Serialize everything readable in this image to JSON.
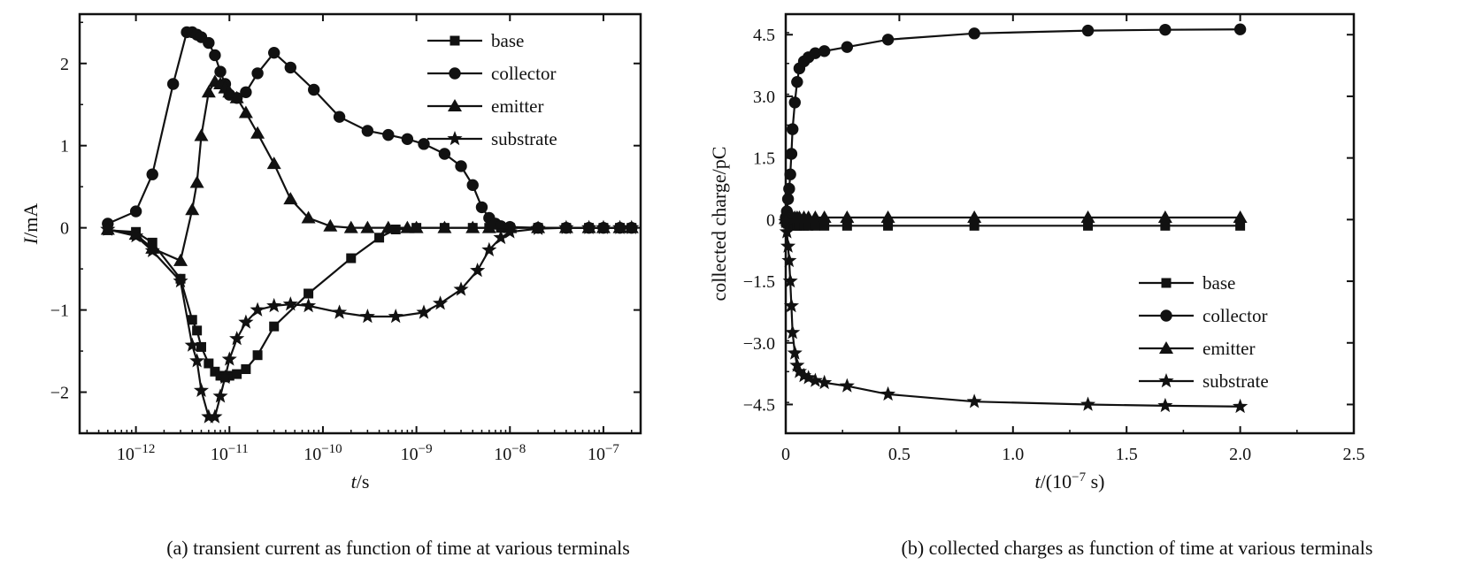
{
  "chart_data": [
    {
      "type": "line",
      "caption": "(a) transient current as function of time at various terminals",
      "xlabel": "t/s",
      "ylabel": "I/mA",
      "x_scale": "log",
      "xlim": [
        2.5e-13,
        2.5e-07
      ],
      "ylim": [
        -2.5,
        2.6
      ],
      "x_ticks": [
        {
          "value": 1e-12,
          "label": "10−12"
        },
        {
          "value": 1e-11,
          "label": "10−11"
        },
        {
          "value": 1e-10,
          "label": "10−10"
        },
        {
          "value": 1e-09,
          "label": "10−9"
        },
        {
          "value": 1e-08,
          "label": "10−8"
        },
        {
          "value": 1e-07,
          "label": "10−7"
        }
      ],
      "y_ticks": [
        {
          "value": 2,
          "label": "2"
        },
        {
          "value": 1,
          "label": "1"
        },
        {
          "value": 0,
          "label": "0"
        },
        {
          "value": -1,
          "label": "−1"
        },
        {
          "value": -2,
          "label": "−2"
        }
      ],
      "legend_position": "top-right",
      "series": [
        {
          "name": "base",
          "marker": "square",
          "x": [
            5e-13,
            1e-12,
            1.5e-12,
            3e-12,
            4e-12,
            4.5e-12,
            5e-12,
            6e-12,
            7e-12,
            8e-12,
            9e-12,
            1e-11,
            1.2e-11,
            1.5e-11,
            2e-11,
            3e-11,
            7e-11,
            2e-10,
            4e-10,
            6e-10,
            1e-09,
            2e-09,
            4e-09,
            6e-09,
            8e-09,
            1e-08,
            2e-08,
            4e-08,
            7e-08,
            1e-07,
            1.5e-07,
            2e-07
          ],
          "y": [
            -0.03,
            -0.05,
            -0.18,
            -0.62,
            -1.12,
            -1.25,
            -1.45,
            -1.65,
            -1.75,
            -1.8,
            -1.82,
            -1.8,
            -1.78,
            -1.72,
            -1.55,
            -1.2,
            -0.8,
            -0.37,
            -0.12,
            -0.02,
            0,
            0,
            0,
            0,
            0,
            0,
            0,
            0,
            0,
            0,
            0,
            0
          ]
        },
        {
          "name": "collector",
          "marker": "circle",
          "x": [
            5e-13,
            1e-12,
            1.5e-12,
            2.5e-12,
            3.5e-12,
            4e-12,
            4.5e-12,
            5e-12,
            6e-12,
            7e-12,
            8e-12,
            9e-12,
            1e-11,
            1.2e-11,
            1.5e-11,
            2e-11,
            3e-11,
            4.5e-11,
            8e-11,
            1.5e-10,
            3e-10,
            5e-10,
            8e-10,
            1.2e-09,
            2e-09,
            3e-09,
            4e-09,
            5e-09,
            6e-09,
            7e-09,
            8e-09,
            1e-08,
            2e-08,
            4e-08,
            7e-08,
            1e-07,
            1.5e-07,
            2e-07
          ],
          "y": [
            0.05,
            0.2,
            0.65,
            1.75,
            2.38,
            2.38,
            2.35,
            2.32,
            2.25,
            2.1,
            1.9,
            1.75,
            1.62,
            1.58,
            1.65,
            1.88,
            2.13,
            1.95,
            1.68,
            1.35,
            1.18,
            1.13,
            1.08,
            1.02,
            0.9,
            0.75,
            0.52,
            0.25,
            0.12,
            0.05,
            0.02,
            0.01,
            0,
            0,
            0,
            0,
            0,
            0
          ]
        },
        {
          "name": "emitter",
          "marker": "triangle",
          "x": [
            5e-13,
            1e-12,
            1.5e-12,
            3e-12,
            4e-12,
            4.5e-12,
            5e-12,
            6e-12,
            7e-12,
            8e-12,
            9e-12,
            1e-11,
            1.2e-11,
            1.5e-11,
            2e-11,
            3e-11,
            4.5e-11,
            7e-11,
            1.2e-10,
            2e-10,
            3e-10,
            5e-10,
            8e-10,
            1e-09,
            2e-09,
            4e-09,
            6e-09,
            1e-08,
            2e-08,
            4e-08,
            7e-08,
            1e-07,
            1.5e-07,
            2e-07
          ],
          "y": [
            -0.02,
            -0.08,
            -0.25,
            -0.4,
            0.22,
            0.55,
            1.12,
            1.65,
            1.78,
            1.75,
            1.7,
            1.65,
            1.58,
            1.4,
            1.15,
            0.78,
            0.35,
            0.12,
            0.02,
            0,
            0,
            0,
            0,
            0,
            0,
            0,
            0,
            0,
            0,
            0,
            0,
            0,
            0,
            0
          ]
        },
        {
          "name": "substrate",
          "marker": "star",
          "x": [
            5e-13,
            1e-12,
            1.5e-12,
            3e-12,
            4e-12,
            4.5e-12,
            5e-12,
            6e-12,
            7e-12,
            8e-12,
            9e-12,
            1e-11,
            1.2e-11,
            1.5e-11,
            2e-11,
            3e-11,
            4.5e-11,
            7e-11,
            1.5e-10,
            3e-10,
            6e-10,
            1.2e-09,
            1.8e-09,
            3e-09,
            4.5e-09,
            6e-09,
            8e-09,
            1e-08,
            2e-08,
            4e-08,
            7e-08,
            1e-07,
            1.5e-07,
            2e-07
          ],
          "y": [
            -0.02,
            -0.1,
            -0.28,
            -0.65,
            -1.43,
            -1.62,
            -1.98,
            -2.3,
            -2.3,
            -2.05,
            -1.82,
            -1.6,
            -1.35,
            -1.15,
            -1.0,
            -0.95,
            -0.93,
            -0.95,
            -1.03,
            -1.08,
            -1.08,
            -1.03,
            -0.92,
            -0.75,
            -0.52,
            -0.27,
            -0.12,
            -0.05,
            -0.01,
            0,
            0,
            0,
            0,
            0
          ]
        }
      ]
    },
    {
      "type": "line",
      "caption": "(b) collected charges as function of time at various terminals",
      "xlabel": "t/(10−7 s)",
      "ylabel": "collected charge/pC",
      "x_scale": "linear",
      "xlim": [
        0,
        2.5
      ],
      "ylim": [
        -5.2,
        5.0
      ],
      "x_ticks": [
        {
          "value": 0,
          "label": "0"
        },
        {
          "value": 0.5,
          "label": "0.5"
        },
        {
          "value": 1.0,
          "label": "1.0"
        },
        {
          "value": 1.5,
          "label": "1.5"
        },
        {
          "value": 2.0,
          "label": "2.0"
        },
        {
          "value": 2.5,
          "label": "2.5"
        }
      ],
      "y_ticks": [
        {
          "value": 4.5,
          "label": "4.5"
        },
        {
          "value": 3.0,
          "label": "3.0"
        },
        {
          "value": 1.5,
          "label": "1.5"
        },
        {
          "value": 0,
          "label": "0"
        },
        {
          "value": -1.5,
          "label": "−1.5"
        },
        {
          "value": -3.0,
          "label": "−3.0"
        },
        {
          "value": -4.5,
          "label": "−4.5"
        }
      ],
      "legend_position": "bottom-right",
      "series": [
        {
          "name": "base",
          "marker": "square",
          "x": [
            0,
            0.005,
            0.01,
            0.015,
            0.02,
            0.025,
            0.03,
            0.04,
            0.05,
            0.06,
            0.08,
            0.1,
            0.13,
            0.17,
            0.27,
            0.45,
            0.83,
            1.33,
            1.67,
            2.0
          ],
          "y": [
            -0.05,
            -0.08,
            -0.1,
            -0.12,
            -0.13,
            -0.14,
            -0.14,
            -0.15,
            -0.15,
            -0.15,
            -0.15,
            -0.15,
            -0.15,
            -0.15,
            -0.15,
            -0.15,
            -0.15,
            -0.15,
            -0.15,
            -0.15
          ]
        },
        {
          "name": "collector",
          "marker": "circle",
          "x": [
            0,
            0.005,
            0.01,
            0.015,
            0.02,
            0.025,
            0.03,
            0.04,
            0.05,
            0.06,
            0.08,
            0.1,
            0.13,
            0.17,
            0.27,
            0.45,
            0.83,
            1.33,
            1.67,
            2.0
          ],
          "y": [
            0.05,
            0.2,
            0.5,
            0.75,
            1.1,
            1.6,
            2.2,
            2.85,
            3.35,
            3.68,
            3.85,
            3.95,
            4.05,
            4.1,
            4.2,
            4.38,
            4.53,
            4.6,
            4.62,
            4.63
          ]
        },
        {
          "name": "emitter",
          "marker": "triangle",
          "x": [
            0,
            0.005,
            0.01,
            0.015,
            0.02,
            0.025,
            0.03,
            0.04,
            0.05,
            0.06,
            0.08,
            0.1,
            0.13,
            0.17,
            0.27,
            0.45,
            0.83,
            1.33,
            1.67,
            2.0
          ],
          "y": [
            0.02,
            0.05,
            0.06,
            0.06,
            0.06,
            0.06,
            0.05,
            0.05,
            0.05,
            0.05,
            0.05,
            0.05,
            0.05,
            0.05,
            0.05,
            0.05,
            0.05,
            0.05,
            0.05,
            0.05
          ]
        },
        {
          "name": "substrate",
          "marker": "star",
          "x": [
            0,
            0.005,
            0.01,
            0.015,
            0.02,
            0.025,
            0.03,
            0.04,
            0.05,
            0.06,
            0.08,
            0.1,
            0.13,
            0.17,
            0.27,
            0.45,
            0.83,
            1.33,
            1.67,
            2.0
          ],
          "y": [
            -0.05,
            -0.3,
            -0.65,
            -1.0,
            -1.5,
            -2.1,
            -2.75,
            -3.25,
            -3.55,
            -3.7,
            -3.8,
            -3.85,
            -3.92,
            -3.97,
            -4.05,
            -4.25,
            -4.43,
            -4.5,
            -4.53,
            -4.55
          ]
        }
      ]
    }
  ]
}
